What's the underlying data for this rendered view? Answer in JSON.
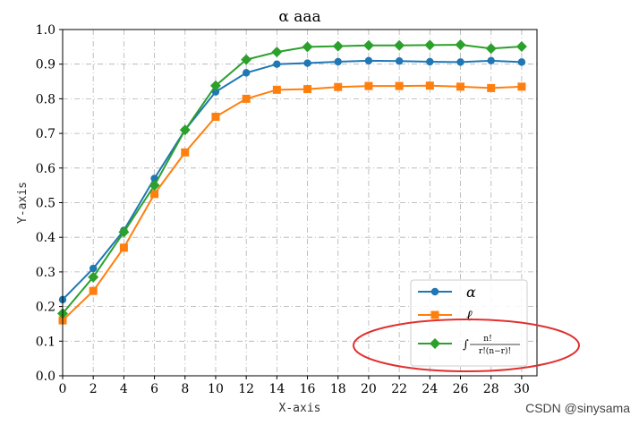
{
  "chart_data": {
    "type": "line",
    "title": "α aaa",
    "xlabel": "X-axis",
    "ylabel": "Y-axis",
    "xlim": [
      0,
      31
    ],
    "ylim": [
      0,
      1.0
    ],
    "xticks": [
      0,
      2,
      4,
      6,
      8,
      10,
      12,
      14,
      16,
      18,
      20,
      22,
      24,
      26,
      28,
      30
    ],
    "yticks": [
      0.0,
      0.1,
      0.2,
      0.3,
      0.4,
      0.5,
      0.6,
      0.7,
      0.8,
      0.9,
      1.0
    ],
    "ytick_labels": [
      "0.0",
      "0.1",
      "0.2",
      "0.3",
      "0.4",
      "0.5",
      "0.6",
      "0.7",
      "0.8",
      "0.9",
      "1.0"
    ],
    "grid": true,
    "legend_position": "lower-right",
    "x": [
      0,
      2,
      4,
      6,
      8,
      10,
      12,
      14,
      16,
      18,
      20,
      22,
      24,
      26,
      28,
      30
    ],
    "series": [
      {
        "name": "α",
        "color": "#1f77b4",
        "marker": "circle",
        "values": [
          0.22,
          0.31,
          0.42,
          0.57,
          0.71,
          0.82,
          0.875,
          0.9,
          0.903,
          0.907,
          0.91,
          0.909,
          0.907,
          0.906,
          0.91,
          0.906
        ]
      },
      {
        "name": "ℓ",
        "color": "#ff7f0e",
        "marker": "square",
        "values": [
          0.16,
          0.245,
          0.37,
          0.525,
          0.645,
          0.748,
          0.8,
          0.826,
          0.828,
          0.834,
          0.837,
          0.837,
          0.838,
          0.835,
          0.831,
          0.835
        ]
      },
      {
        "name": "∫ n! / (r!(n−r)!)",
        "color": "#2ca02c",
        "marker": "diamond",
        "values": [
          0.18,
          0.285,
          0.415,
          0.55,
          0.71,
          0.838,
          0.913,
          0.935,
          0.95,
          0.952,
          0.954,
          0.954,
          0.955,
          0.956,
          0.945,
          0.951
        ]
      }
    ],
    "annotation": {
      "shape": "ellipse",
      "color": "#e03030",
      "target": "legend-entry-3"
    }
  },
  "watermark": "CSDN @sinysama"
}
